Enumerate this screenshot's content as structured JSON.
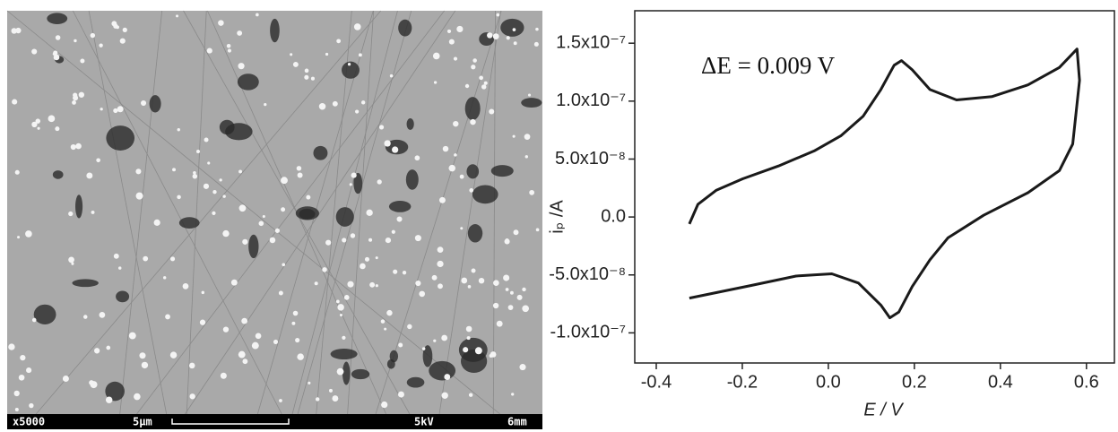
{
  "micrograph": {
    "magnification": "x5000",
    "scale": "5μm",
    "voltage": "5kV",
    "distance": "6mm"
  },
  "chart_data": {
    "type": "line",
    "annotation": "ΔE = 0.009 V",
    "x_label": "E / V",
    "y_label": "iₚ /A",
    "xlim": [
      -0.45,
      0.665
    ],
    "ylim": [
      -1.26e-07,
      1.78e-07
    ],
    "xticks": [
      -0.4,
      -0.2,
      {
        "value": 0,
        "label": "0.0"
      },
      0.2,
      0.4,
      0.6
    ],
    "yticks": [
      {
        "value": -1e-07,
        "label": "-1.0x10⁻⁷"
      },
      {
        "value": -5e-08,
        "label": "-5.0x10⁻⁸"
      },
      {
        "value": 0,
        "label": "0.0"
      },
      {
        "value": 5e-08,
        "label": "5.0x10⁻⁸"
      },
      {
        "value": 1e-07,
        "label": "1.0x10⁻⁷"
      },
      {
        "value": 1.5e-07,
        "label": "1.5x10⁻⁷"
      }
    ],
    "series": [
      {
        "color": "#1a1a1a",
        "x": [
          -0.323,
          -0.303,
          -0.261,
          -0.199,
          -0.116,
          -0.033,
          0.029,
          0.081,
          0.122,
          0.153,
          0.17,
          0.195,
          0.236,
          0.298,
          0.381,
          0.464,
          0.537,
          0.578,
          0.584,
          0.568,
          0.537,
          0.464,
          0.361,
          0.278,
          0.236,
          0.195,
          0.164,
          0.143,
          0.122,
          0.07,
          0.008,
          -0.075,
          -0.178,
          -0.323
        ],
        "values": [
          -6e-09,
          1.1e-08,
          2.3e-08,
          3.3e-08,
          4.4e-08,
          5.7e-08,
          7e-08,
          8.7e-08,
          1.1e-07,
          1.31e-07,
          1.35e-07,
          1.27e-07,
          1.1e-07,
          1.01e-07,
          1.04e-07,
          1.14e-07,
          1.29e-07,
          1.45e-07,
          1.18e-07,
          6.3e-08,
          4e-08,
          2.1e-08,
          1.5e-09,
          -1.8e-08,
          -3.7e-08,
          -6e-08,
          -8.2e-08,
          -8.7e-08,
          -7.6e-08,
          -5.7e-08,
          -4.9e-08,
          -5.1e-08,
          -5.9e-08,
          -7e-08
        ]
      }
    ]
  }
}
